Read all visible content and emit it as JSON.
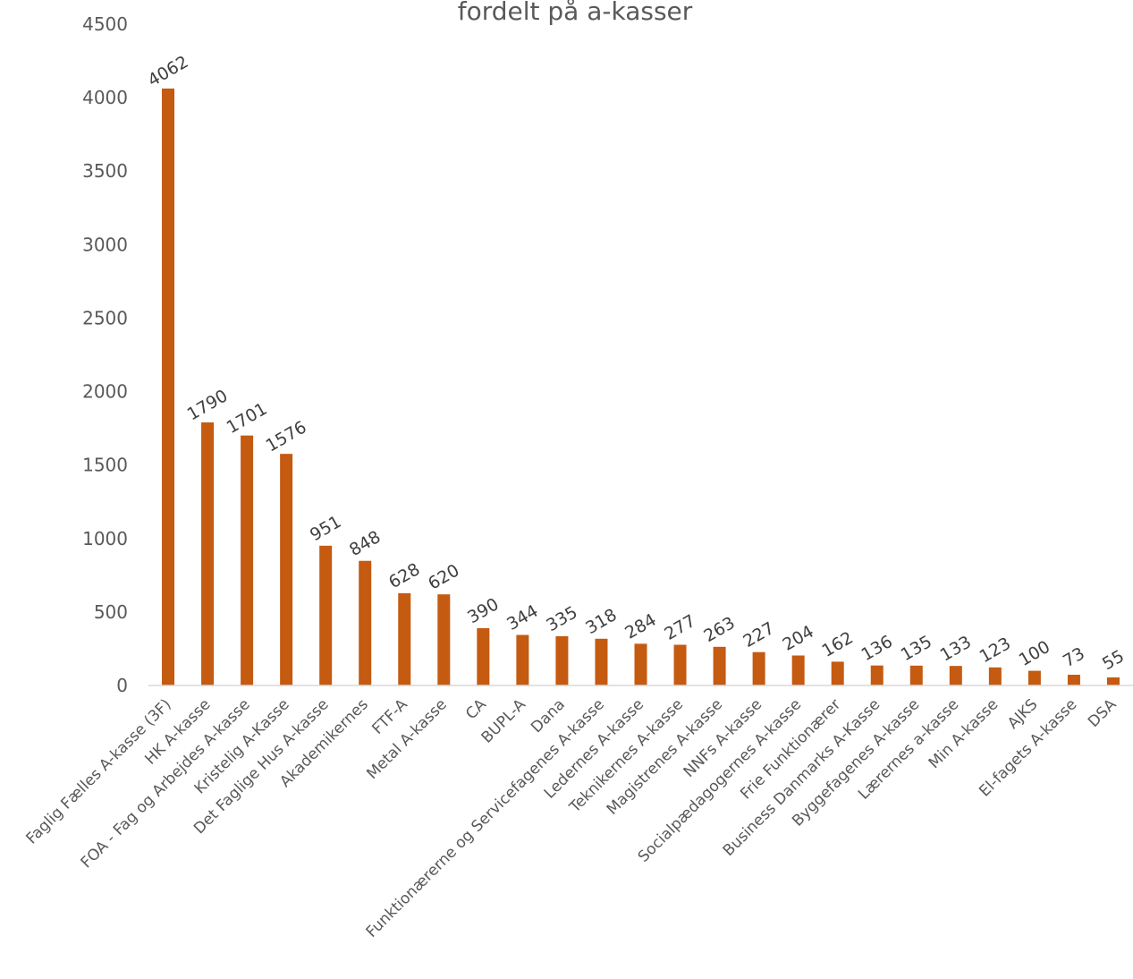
{
  "chart_data": {
    "type": "bar",
    "title": "fordelt på a-kasser",
    "categories": [
      "Faglig Fælles A-kasse (3F)",
      "HK A-kasse",
      "FOA - Fag og Arbejdes A-kasse",
      "Kristelig A-Kasse",
      "Det Faglige Hus A-kasse",
      "Akademikernes",
      "FTF-A",
      "Metal A-kasse",
      "CA",
      "BUPL-A",
      "Dana",
      "Funktionærerne og Servicefagenes A-kasse",
      "Ledernes A-kasse",
      "Teknikernes A-kasse",
      "Magistrenes A-kasse",
      "NNFs A-kasse",
      "Socialpædagogernes A-kasse",
      "Frie Funktionærer",
      "Business Danmarks A-Kasse",
      "Byggefagenes A-kasse",
      "Lærernes a-kasse",
      "Min A-kasse",
      "AJKS",
      "El-fagets A-kasse",
      "DSA"
    ],
    "values": [
      4062,
      1790,
      1701,
      1576,
      951,
      848,
      628,
      620,
      390,
      344,
      335,
      318,
      284,
      277,
      263,
      227,
      204,
      162,
      136,
      135,
      133,
      123,
      100,
      73,
      55
    ],
    "ylim": [
      0,
      4500
    ],
    "yticks": [
      0,
      500,
      1000,
      1500,
      2000,
      2500,
      3000,
      3500,
      4000,
      4500
    ],
    "grid": false,
    "legend": "none",
    "colors": {
      "bar": "#C55A11",
      "axis": "#D9D9D9",
      "text": "#595959",
      "label": "#404040"
    }
  }
}
